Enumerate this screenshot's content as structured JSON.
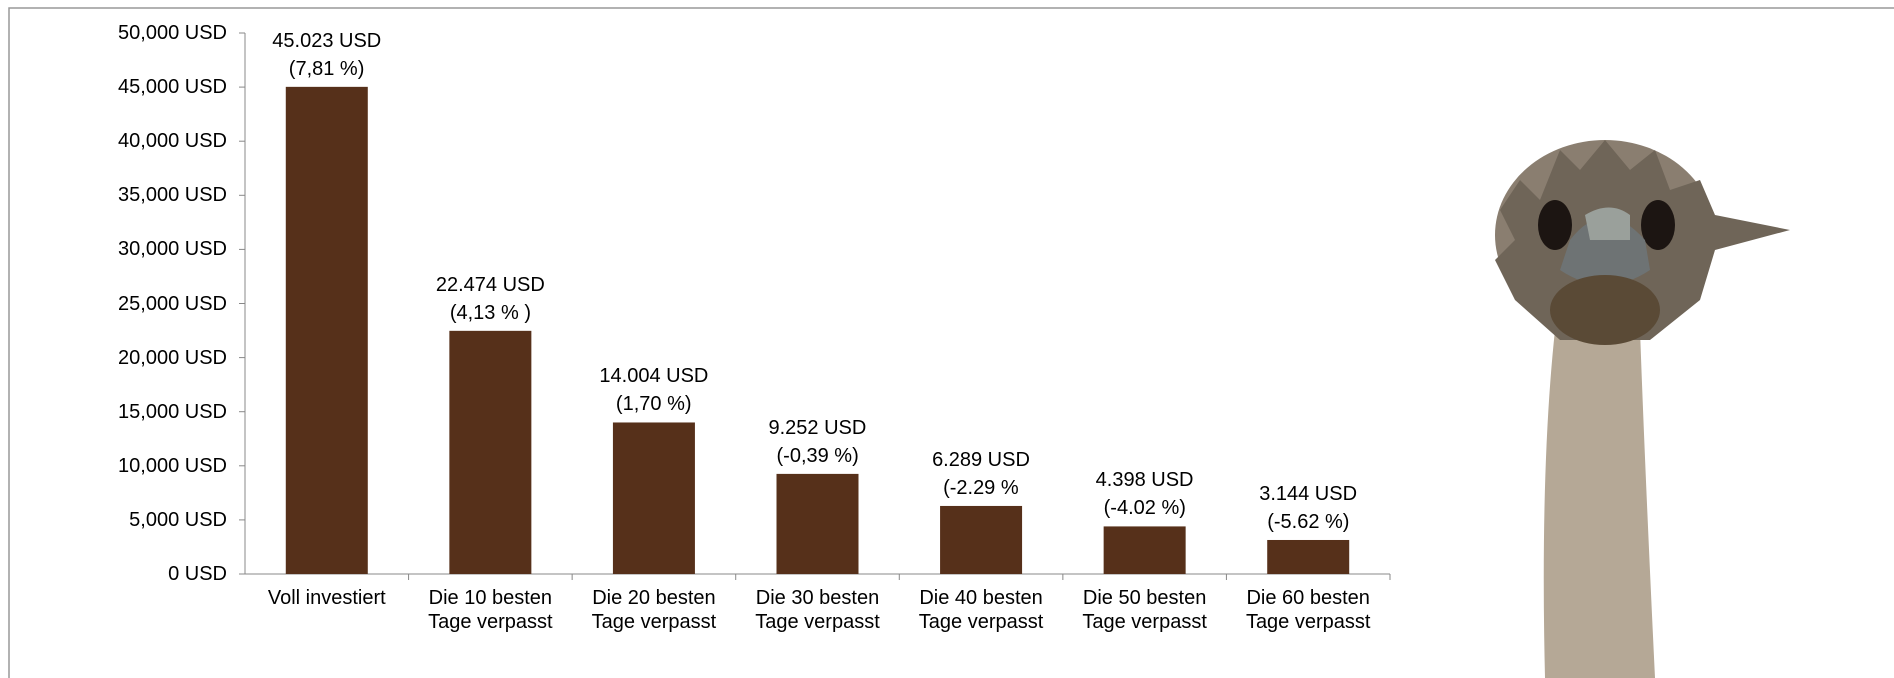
{
  "chart_data": {
    "type": "bar",
    "categories": [
      "Voll investiert",
      "Die 10 besten Tage verpasst",
      "Die 20 besten Tage verpasst",
      "Die 30 besten Tage verpasst",
      "Die 40 besten Tage verpasst",
      "Die 50 besten Tage verpasst",
      "Die 60 besten Tage verpasst"
    ],
    "values": [
      45023,
      22474,
      14004,
      9252,
      6289,
      4398,
      3144
    ],
    "value_labels": [
      "45.023 USD",
      "22.474 USD",
      "14.004 USD",
      "9.252 USD",
      "6.289 USD",
      "4.398 USD",
      "3.144 USD"
    ],
    "returns": [
      "(7,81 %)",
      "(4,13 % )",
      "(1,70 %)",
      "(-0,39 %)",
      "(-2.29 %",
      "(-4.02 %)",
      "(-5.62 %)"
    ],
    "color": "#56301a",
    "ylim": [
      0,
      50000
    ],
    "yticks": [
      {
        "value": 0,
        "label": "0 USD"
      },
      {
        "value": 5000,
        "label": "5,000 USD"
      },
      {
        "value": 10000,
        "label": "10,000 USD"
      },
      {
        "value": 15000,
        "label": "15,000 USD"
      },
      {
        "value": 20000,
        "label": "20,000 USD"
      },
      {
        "value": 25000,
        "label": "25,000 USD"
      },
      {
        "value": 30000,
        "label": "30,000 USD"
      },
      {
        "value": 35000,
        "label": "35,000 USD"
      },
      {
        "value": 40000,
        "label": "40,000 USD"
      },
      {
        "value": 45000,
        "label": "45,000 USD"
      },
      {
        "value": 50000,
        "label": "50,000 USD"
      }
    ]
  }
}
